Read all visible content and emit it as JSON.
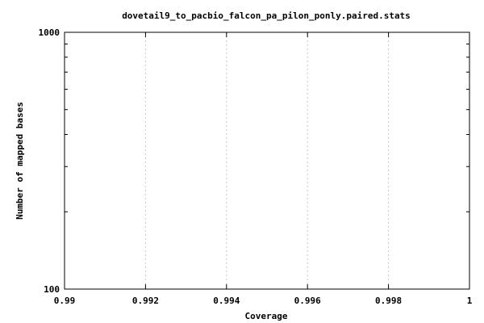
{
  "chart_data": {
    "type": "line",
    "title": "dovetail9_to_pacbio_falcon_pa_pilon_ponly.paired.stats",
    "xlabel": "Coverage",
    "ylabel": "Number of mapped bases",
    "xlim": [
      0.99,
      1.0
    ],
    "ylim": [
      100,
      1000
    ],
    "y_scale": "log",
    "x_ticks": [
      {
        "value": 0.99,
        "label": "0.99"
      },
      {
        "value": 0.992,
        "label": "0.992"
      },
      {
        "value": 0.994,
        "label": "0.994"
      },
      {
        "value": 0.996,
        "label": "0.996"
      },
      {
        "value": 0.998,
        "label": "0.998"
      },
      {
        "value": 1.0,
        "label": "1"
      }
    ],
    "y_ticks": [
      {
        "value": 100,
        "label": "100"
      },
      {
        "value": 1000,
        "label": "1000"
      }
    ],
    "grid": "vertical dashed at x ticks",
    "series": [],
    "colors": {
      "background": "#ffffff",
      "axis": "#000000",
      "grid": "#c8c8c8"
    }
  }
}
